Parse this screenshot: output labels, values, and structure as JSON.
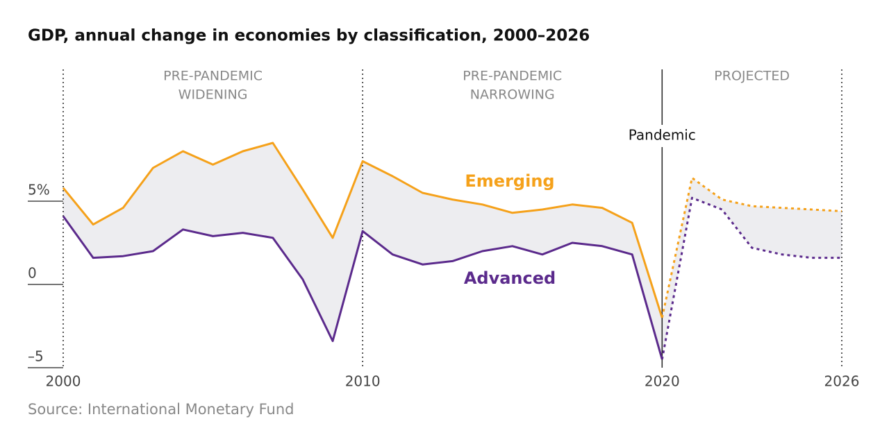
{
  "chart_data": {
    "type": "line",
    "title": "GDP, annual change in economies by classification, 2000–2026",
    "source": "Source: International Monetary Fund",
    "x": [
      2000,
      2001,
      2002,
      2003,
      2004,
      2005,
      2006,
      2007,
      2008,
      2009,
      2010,
      2011,
      2012,
      2013,
      2014,
      2015,
      2016,
      2017,
      2018,
      2019,
      2020,
      2021,
      2022,
      2023,
      2024,
      2025,
      2026
    ],
    "series": [
      {
        "name": "Emerging",
        "color": "#f5a11a",
        "values": [
          5.8,
          3.6,
          4.6,
          7.0,
          8.0,
          7.2,
          8.0,
          8.5,
          5.7,
          2.8,
          7.4,
          6.5,
          5.5,
          5.1,
          4.8,
          4.3,
          4.5,
          4.8,
          4.6,
          3.7,
          -2.0,
          6.4,
          5.1,
          4.7,
          4.6,
          4.5,
          4.4
        ]
      },
      {
        "name": "Advanced",
        "color": "#5b2a8c",
        "values": [
          4.1,
          1.6,
          1.7,
          2.0,
          3.3,
          2.9,
          3.1,
          2.8,
          0.3,
          -3.4,
          3.2,
          1.8,
          1.2,
          1.4,
          2.0,
          2.3,
          1.8,
          2.5,
          2.3,
          1.8,
          -4.5,
          5.2,
          4.5,
          2.2,
          1.8,
          1.6,
          1.6
        ]
      }
    ],
    "xlim": [
      2000,
      2026
    ],
    "xticks": [
      2000,
      2010,
      2020,
      2026
    ],
    "ylim": [
      -5,
      13
    ],
    "yticks": [
      {
        "value": 5,
        "label": "5%"
      },
      0,
      {
        "value": -5,
        "label": "–5"
      }
    ],
    "markers": [
      {
        "x": 2000,
        "style": "dotted"
      },
      {
        "x": 2010,
        "style": "dotted"
      },
      {
        "x": 2020,
        "style": "solid",
        "label": "Pandemic"
      },
      {
        "x": 2026,
        "style": "dotted"
      }
    ],
    "regions": [
      {
        "start": 2000,
        "end": 2010,
        "label": [
          "PRE-PANDEMIC",
          "WIDENING"
        ]
      },
      {
        "start": 2010,
        "end": 2020,
        "label": [
          "PRE-PANDEMIC",
          "NARROWING"
        ]
      },
      {
        "start": 2020,
        "end": 2026,
        "label": [
          "PROJECTED"
        ],
        "line_style": "dotted"
      }
    ]
  }
}
